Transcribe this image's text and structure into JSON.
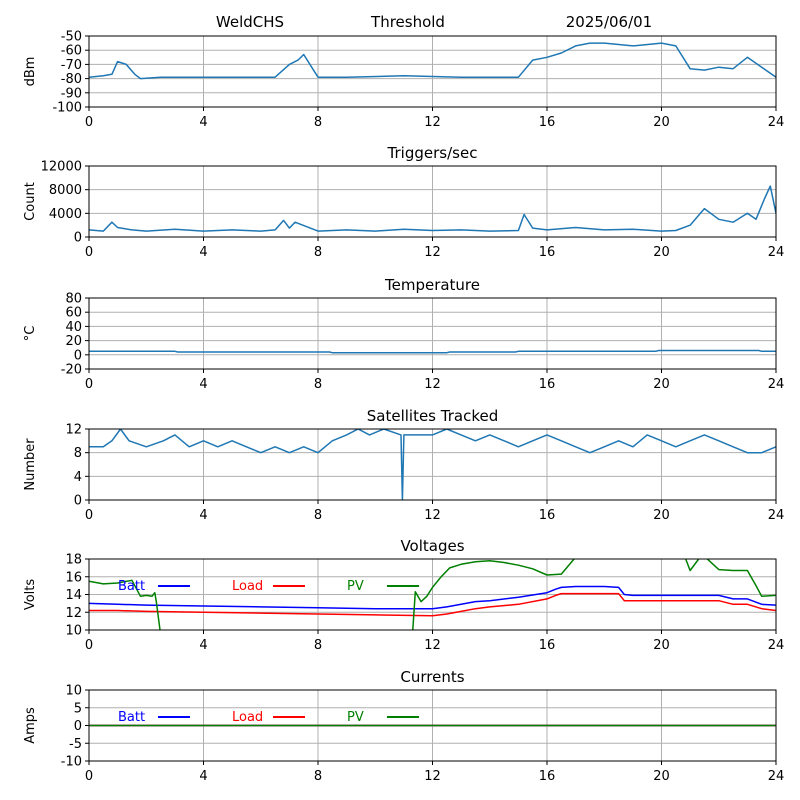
{
  "header": {
    "station": "WeldCHS",
    "threshold": "Threshold",
    "date": "2025/06/01"
  },
  "chart_data": [
    {
      "type": "line",
      "title": "",
      "ylabel": "dBm",
      "xlim": [
        0,
        24
      ],
      "ylim": [
        -100,
        -50
      ],
      "xticks": [
        "0",
        "4",
        "8",
        "12",
        "16",
        "20",
        "24"
      ],
      "yticks": [
        "-50",
        "-60",
        "-70",
        "-80",
        "-90",
        "-100"
      ],
      "yticks_values": [
        -50,
        -60,
        -70,
        -80,
        -90,
        -100
      ],
      "grid": true,
      "series": [
        {
          "color": "#1f77b4",
          "x": [
            0,
            0.5,
            0.8,
            1.0,
            1.3,
            1.6,
            1.8,
            2.5,
            6,
            6.5,
            7.0,
            7.3,
            7.5,
            8.0,
            9,
            11,
            13,
            15,
            15.5,
            16,
            16.5,
            17,
            17.5,
            18,
            19,
            20,
            20.5,
            21,
            21.5,
            22,
            22.5,
            23,
            23.5,
            24
          ],
          "values": [
            -79,
            -78,
            -77,
            -68,
            -70,
            -77,
            -80,
            -79,
            -79,
            -79,
            -70,
            -67,
            -63,
            -79,
            -79,
            -78,
            -79,
            -79,
            -67,
            -65,
            -62,
            -57,
            -55,
            -55,
            -57,
            -55,
            -57,
            -73,
            -74,
            -72,
            -73,
            -65,
            -72,
            -79
          ]
        }
      ]
    },
    {
      "type": "line",
      "title": "Triggers/sec",
      "ylabel": "Count",
      "xlim": [
        0,
        24
      ],
      "ylim": [
        0,
        12000
      ],
      "xticks": [
        "0",
        "4",
        "8",
        "12",
        "16",
        "20",
        "24"
      ],
      "yticks": [
        "12000",
        "8000",
        "4000",
        "0"
      ],
      "yticks_values": [
        12000,
        8000,
        4000,
        0
      ],
      "grid": true,
      "series": [
        {
          "color": "#1f77b4",
          "x": [
            0,
            0.5,
            0.8,
            1.0,
            1.5,
            2.0,
            3,
            4,
            5,
            6,
            6.5,
            6.8,
            7.0,
            7.2,
            8,
            9,
            10,
            11,
            12,
            13,
            14,
            15,
            15.2,
            15.5,
            16,
            17,
            18,
            19,
            20,
            20.5,
            21,
            21.5,
            22,
            22.5,
            23,
            23.3,
            23.6,
            23.8,
            24
          ],
          "values": [
            1200,
            1000,
            2500,
            1600,
            1200,
            1000,
            1300,
            1000,
            1200,
            1000,
            1200,
            2800,
            1500,
            2500,
            1000,
            1200,
            1000,
            1300,
            1100,
            1200,
            1000,
            1100,
            3800,
            1500,
            1200,
            1600,
            1200,
            1300,
            1000,
            1100,
            2000,
            4800,
            3000,
            2500,
            4000,
            3000,
            6500,
            8600,
            4000
          ]
        }
      ]
    },
    {
      "type": "line",
      "title": "Temperature",
      "ylabel": "°C",
      "xlim": [
        0,
        24
      ],
      "ylim": [
        -20,
        80
      ],
      "xticks": [
        "0",
        "4",
        "8",
        "12",
        "16",
        "20",
        "24"
      ],
      "yticks": [
        "80",
        "60",
        "40",
        "20",
        "0",
        "-20"
      ],
      "yticks_values": [
        80,
        60,
        40,
        20,
        0,
        -20
      ],
      "grid": true,
      "series": [
        {
          "color": "#1f77b4",
          "x": [
            0,
            3,
            3.1,
            8.4,
            8.5,
            12.5,
            12.6,
            14.9,
            15,
            19.8,
            19.9,
            21.4,
            21.5,
            23.4,
            23.5,
            24
          ],
          "values": [
            5,
            5,
            4,
            4,
            3,
            3,
            4,
            4,
            5,
            5,
            6,
            6,
            6,
            6,
            5,
            5
          ]
        }
      ]
    },
    {
      "type": "line",
      "title": "Satellites Tracked",
      "ylabel": "Number",
      "xlim": [
        0,
        24
      ],
      "ylim": [
        0,
        12
      ],
      "xticks": [
        "0",
        "4",
        "8",
        "12",
        "16",
        "20",
        "24"
      ],
      "yticks": [
        "12",
        "8",
        "4",
        "0"
      ],
      "yticks_values": [
        12,
        8,
        4,
        0
      ],
      "grid": true,
      "series": [
        {
          "color": "#1f77b4",
          "x": [
            0,
            0.5,
            0.8,
            1.1,
            1.4,
            2,
            2.6,
            3,
            3.5,
            4,
            4.5,
            5,
            5.5,
            6,
            6.5,
            7,
            7.5,
            8,
            8.5,
            9,
            9.4,
            9.8,
            10.3,
            10.9,
            10.95,
            11.0,
            11.05,
            11.5,
            12,
            12.5,
            13,
            13.5,
            14,
            14.5,
            15,
            15.5,
            16,
            16.5,
            17,
            17.5,
            18,
            18.5,
            19,
            19.5,
            20,
            20.5,
            21,
            21.5,
            22,
            22.5,
            23,
            23.5,
            24
          ],
          "values": [
            9,
            9,
            10,
            12,
            10,
            9,
            10,
            11,
            9,
            10,
            9,
            10,
            9,
            8,
            9,
            8,
            9,
            8,
            10,
            11,
            12,
            11,
            12,
            11,
            0,
            11,
            11,
            11,
            11,
            12,
            11,
            10,
            11,
            10,
            9,
            10,
            11,
            10,
            9,
            8,
            9,
            10,
            9,
            11,
            10,
            9,
            10,
            11,
            10,
            9,
            8,
            8,
            9
          ]
        }
      ]
    },
    {
      "type": "line",
      "title": "Voltages",
      "ylabel": "Volts",
      "xlim": [
        0,
        24
      ],
      "ylim": [
        10,
        18
      ],
      "xticks": [
        "0",
        "4",
        "8",
        "12",
        "16",
        "20",
        "24"
      ],
      "yticks": [
        "18",
        "16",
        "14",
        "12",
        "10"
      ],
      "yticks_values": [
        18,
        16,
        14,
        12,
        10
      ],
      "grid": true,
      "legend": [
        {
          "label": "Batt",
          "color": "#0000ff"
        },
        {
          "label": "Load",
          "color": "#ff0000"
        },
        {
          "label": "PV",
          "color": "#008000"
        }
      ],
      "series": [
        {
          "name": "Batt",
          "color": "#0000ff",
          "x": [
            0,
            1,
            2,
            4,
            6,
            8,
            10,
            12,
            12.5,
            13,
            13.5,
            14,
            15,
            16,
            16.3,
            16.5,
            17,
            18,
            18.5,
            18.7,
            19,
            20,
            20.5,
            21,
            22,
            22.5,
            23,
            23.5,
            24
          ],
          "values": [
            13.0,
            12.9,
            12.8,
            12.7,
            12.6,
            12.5,
            12.4,
            12.4,
            12.6,
            12.9,
            13.2,
            13.3,
            13.7,
            14.2,
            14.6,
            14.8,
            14.9,
            14.9,
            14.8,
            14.0,
            13.9,
            13.9,
            13.9,
            13.9,
            13.9,
            13.5,
            13.5,
            12.9,
            12.8
          ]
        },
        {
          "name": "Load",
          "color": "#ff0000",
          "x": [
            0,
            1,
            2,
            4,
            6,
            8,
            10,
            12,
            12.5,
            13,
            13.5,
            14,
            15,
            16,
            16.3,
            16.5,
            17,
            18,
            18.5,
            18.7,
            19,
            20,
            20.5,
            21,
            22,
            22.5,
            23,
            23.5,
            24
          ],
          "values": [
            12.2,
            12.2,
            12.1,
            12.0,
            11.9,
            11.8,
            11.7,
            11.6,
            11.8,
            12.1,
            12.4,
            12.6,
            12.9,
            13.5,
            13.9,
            14.1,
            14.1,
            14.1,
            14.1,
            13.3,
            13.3,
            13.3,
            13.3,
            13.3,
            13.3,
            12.9,
            12.9,
            12.4,
            12.2
          ]
        },
        {
          "name": "PV",
          "color": "#008000",
          "x": [
            0,
            0.5,
            1,
            1.5,
            1.8,
            2.0,
            2.2,
            2.3,
            2.35,
            2.5,
            11.3,
            11.4,
            11.6,
            11.8,
            12,
            12.3,
            12.6,
            13,
            13.5,
            14,
            14.5,
            15,
            15.5,
            16,
            16.5,
            17,
            17.5,
            18,
            18.5,
            19,
            19.5,
            20,
            20.5,
            20.8,
            21,
            21.3,
            21.5,
            22,
            22.5,
            23,
            23.3,
            23.5,
            24
          ],
          "values": [
            15.5,
            15.2,
            15.3,
            15.6,
            13.8,
            13.9,
            13.8,
            14.2,
            13.2,
            9.5,
            9.5,
            14.3,
            13.2,
            13.8,
            14.8,
            16.0,
            17.0,
            17.4,
            17.7,
            17.8,
            17.6,
            17.3,
            16.9,
            16.2,
            16.3,
            18.2,
            18.5,
            18.5,
            18.6,
            18.6,
            18.7,
            18.7,
            18.6,
            18.4,
            16.7,
            18.0,
            18.3,
            16.8,
            16.7,
            16.7,
            15.0,
            13.8,
            13.9
          ]
        }
      ]
    },
    {
      "type": "line",
      "title": "Currents",
      "ylabel": "Amps",
      "xlim": [
        0,
        24
      ],
      "ylim": [
        -10,
        10
      ],
      "xticks": [
        "0",
        "4",
        "8",
        "12",
        "16",
        "20",
        "24"
      ],
      "yticks": [
        "10",
        "5",
        "0",
        "-5",
        "-10"
      ],
      "yticks_values": [
        10,
        5,
        0,
        -5,
        -10
      ],
      "grid": true,
      "legend": [
        {
          "label": "Batt",
          "color": "#0000ff"
        },
        {
          "label": "Load",
          "color": "#ff0000"
        },
        {
          "label": "PV",
          "color": "#008000"
        }
      ],
      "series": [
        {
          "name": "Batt",
          "color": "#0000ff",
          "x": [
            0,
            24
          ],
          "values": [
            0,
            0
          ]
        },
        {
          "name": "Load",
          "color": "#ff0000",
          "x": [
            0,
            24
          ],
          "values": [
            0,
            0
          ]
        },
        {
          "name": "PV",
          "color": "#008000",
          "x": [
            0,
            24
          ],
          "values": [
            0,
            0
          ]
        }
      ]
    }
  ]
}
